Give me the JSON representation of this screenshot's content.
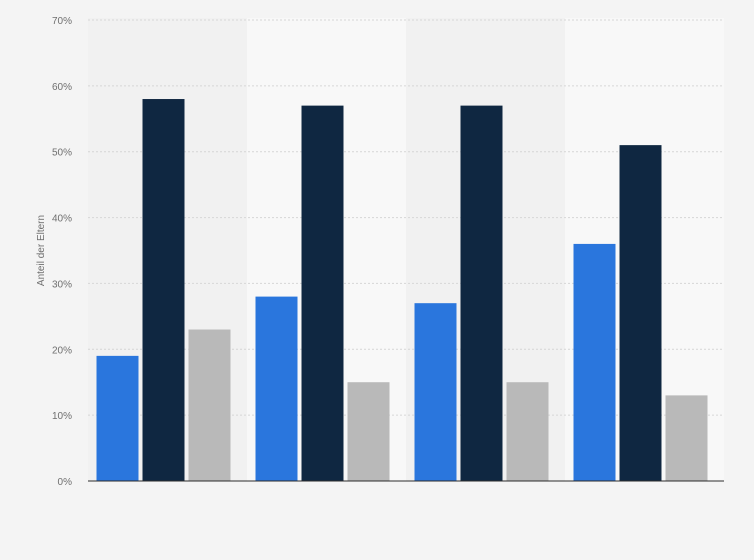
{
  "chart_data": {
    "type": "bar",
    "categories": [
      "",
      "",
      "",
      ""
    ],
    "series": [
      {
        "color": "#2a76dd",
        "values": [
          19,
          28,
          27,
          36
        ]
      },
      {
        "color": "#0f2741",
        "values": [
          58,
          57,
          57,
          51
        ]
      },
      {
        "color": "#b9b9b9",
        "values": [
          23,
          15,
          15,
          13
        ]
      }
    ],
    "title": "",
    "xlabel": "",
    "ylabel": "Anteil der Eltern",
    "ylim": [
      0,
      70
    ],
    "yticks": [
      "0%",
      "10%",
      "20%",
      "30%",
      "40%",
      "50%",
      "60%",
      "70%"
    ],
    "grid": true,
    "legend": "none"
  },
  "colors": {
    "background": "#f4f4f4",
    "band_light": "#f8f8f8",
    "band_dark": "#f1f1f1"
  }
}
